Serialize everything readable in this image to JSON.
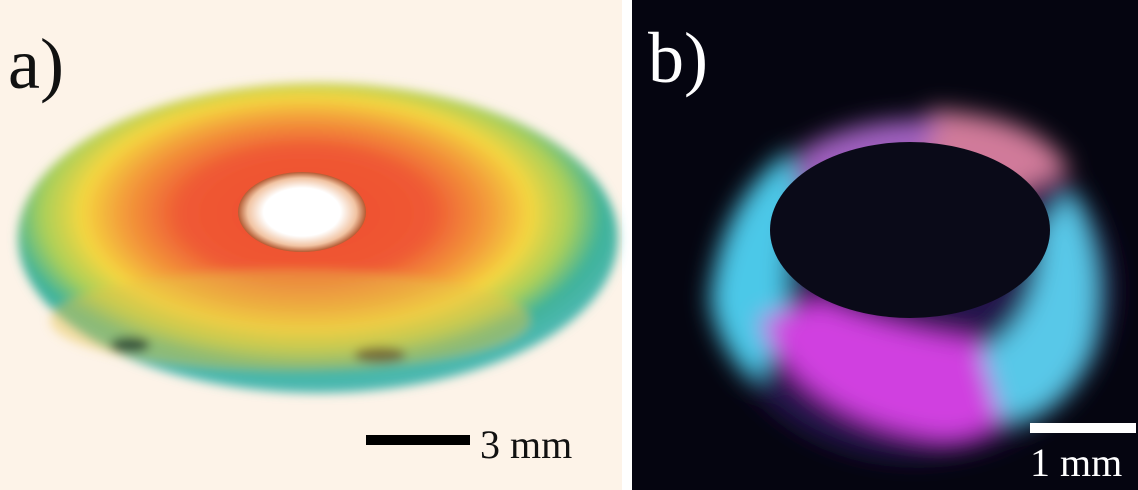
{
  "panels": [
    {
      "label": "a)",
      "scale_bar": "3 mm"
    },
    {
      "label": "b)",
      "scale_bar": "1 mm"
    }
  ]
}
